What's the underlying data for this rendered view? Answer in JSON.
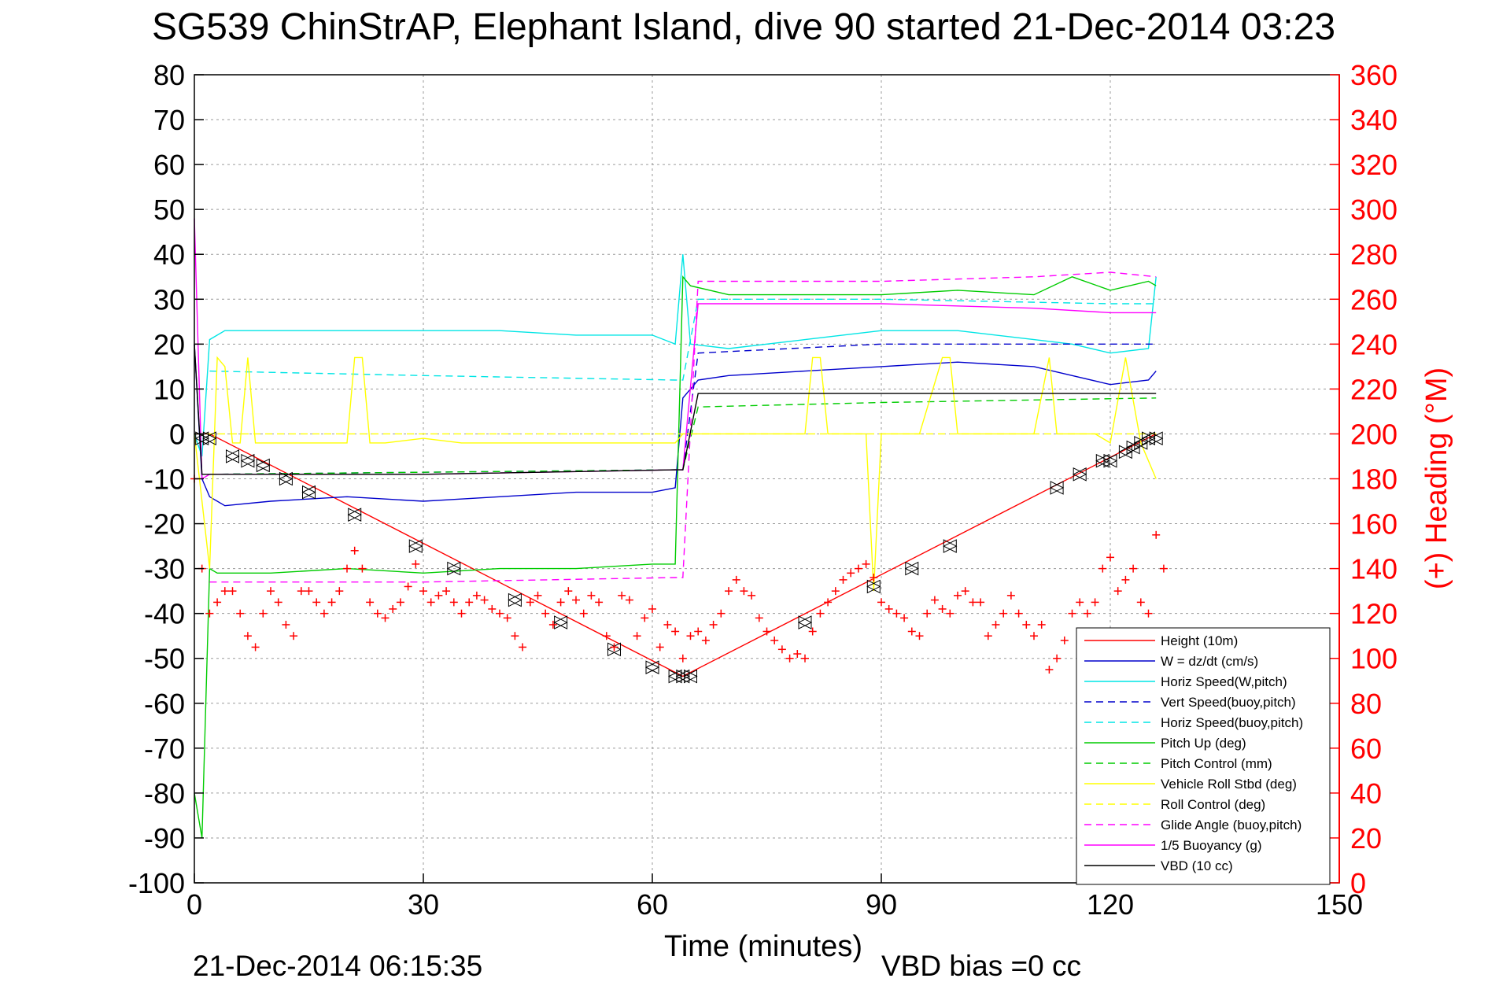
{
  "chart_data": {
    "type": "line",
    "title": "SG539 ChinStrAP, Elephant Island, dive 90 started 21-Dec-2014 03:23",
    "xlabel": "Time (minutes)",
    "ylabel": "",
    "y2label": "(+) Heading (°M)",
    "xlim": [
      0,
      150
    ],
    "ylim": [
      -100,
      80
    ],
    "y2lim": [
      0,
      360
    ],
    "xticks": [
      0,
      30,
      60,
      90,
      120,
      150
    ],
    "yticks": [
      80,
      70,
      60,
      50,
      40,
      30,
      20,
      10,
      0,
      -10,
      -20,
      -30,
      -40,
      -50,
      -60,
      -70,
      -80,
      -90,
      -100
    ],
    "y2ticks": [
      360,
      340,
      320,
      300,
      280,
      260,
      240,
      220,
      200,
      180,
      160,
      140,
      120,
      100,
      80,
      60,
      40,
      20,
      0
    ],
    "grid": true,
    "legend_position": "lower-right",
    "footer_left": "21-Dec-2014 06:15:35",
    "footer_right": "VBD bias =0 cc",
    "colors": {
      "axis_right": "#ff0000",
      "frame": "#000000",
      "grid": "#9a9a9a"
    },
    "series": [
      {
        "name": "Height (10m)",
        "color": "#ff0000",
        "style": "solid",
        "x": [
          0,
          2,
          64,
          126
        ],
        "y": [
          0,
          0,
          -54,
          0
        ]
      },
      {
        "name": "W = dz/dt (cm/s)",
        "color": "#0000cc",
        "style": "solid",
        "x": [
          0,
          1,
          2,
          4,
          10,
          20,
          30,
          40,
          50,
          60,
          63,
          64,
          66,
          70,
          80,
          90,
          100,
          110,
          115,
          120,
          125,
          126
        ],
        "y": [
          20,
          -10,
          -14,
          -16,
          -15,
          -14,
          -15,
          -14,
          -13,
          -13,
          -12,
          8,
          12,
          13,
          14,
          15,
          16,
          15,
          13,
          11,
          12,
          14
        ]
      },
      {
        "name": "Horiz Speed(W,pitch)",
        "color": "#00e5e5",
        "style": "solid",
        "x": [
          0,
          1,
          2,
          4,
          10,
          20,
          30,
          40,
          50,
          60,
          63,
          64,
          65,
          70,
          80,
          90,
          100,
          110,
          115,
          120,
          125,
          126
        ],
        "y": [
          0,
          -5,
          21,
          23,
          23,
          23,
          23,
          23,
          22,
          22,
          20,
          40,
          20,
          19,
          21,
          23,
          23,
          21,
          20,
          18,
          19,
          35
        ]
      },
      {
        "name": "Vert Speed(buoy,pitch)",
        "color": "#0000cc",
        "style": "dashed",
        "x": [
          2,
          63,
          64,
          66,
          90,
          120,
          126
        ],
        "y": [
          -9,
          -8,
          -8,
          18,
          20,
          20,
          20
        ]
      },
      {
        "name": "Horiz Speed(buoy,pitch)",
        "color": "#00e5e5",
        "style": "dashed",
        "x": [
          2,
          30,
          63,
          64,
          66,
          90,
          120,
          126
        ],
        "y": [
          14,
          13,
          12,
          12,
          30,
          30,
          29,
          29
        ]
      },
      {
        "name": "Pitch Up (deg)",
        "color": "#00cc00",
        "style": "solid",
        "x": [
          0,
          1,
          2,
          3,
          10,
          20,
          30,
          40,
          50,
          60,
          63,
          64,
          65,
          70,
          80,
          90,
          100,
          110,
          115,
          120,
          125,
          126
        ],
        "y": [
          -80,
          -90,
          -30,
          -31,
          -31,
          -30,
          -31,
          -30,
          -30,
          -29,
          -29,
          35,
          33,
          31,
          31,
          31,
          32,
          31,
          35,
          32,
          34,
          33
        ]
      },
      {
        "name": "Pitch Control (mm)",
        "color": "#00cc00",
        "style": "dashed",
        "x": [
          2,
          63,
          64,
          66,
          90,
          126
        ],
        "y": [
          -9,
          -8,
          -8,
          6,
          7,
          8
        ]
      },
      {
        "name": "Vehicle Roll Stbd (deg)",
        "color": "#ffff00",
        "style": "solid",
        "x": [
          0,
          2,
          3,
          4,
          5,
          6,
          7,
          8,
          10,
          15,
          20,
          21,
          22,
          23,
          25,
          30,
          35,
          40,
          45,
          50,
          55,
          60,
          63,
          64,
          70,
          80,
          81,
          82,
          83,
          85,
          88,
          89,
          90,
          95,
          98,
          99,
          100,
          105,
          110,
          112,
          113,
          115,
          118,
          120,
          122,
          124,
          126
        ],
        "y": [
          0,
          -30,
          17,
          15,
          -2,
          -2,
          17,
          -2,
          -2,
          -2,
          -2,
          17,
          17,
          -2,
          -2,
          -1,
          -2,
          -2,
          -2,
          -2,
          -2,
          -2,
          -2,
          0,
          0,
          0,
          17,
          17,
          0,
          0,
          0,
          -35,
          0,
          0,
          17,
          17,
          0,
          0,
          0,
          17,
          0,
          0,
          0,
          -2,
          17,
          -2,
          -10
        ]
      },
      {
        "name": "Roll Control (deg)",
        "color": "#ffff00",
        "style": "dashed",
        "x": [
          0,
          126
        ],
        "y": [
          0,
          0
        ]
      },
      {
        "name": "Glide Angle (buoy,pitch)",
        "color": "#ff00ff",
        "style": "dashed",
        "x": [
          2,
          30,
          63,
          64,
          66,
          90,
          110,
          120,
          126
        ],
        "y": [
          -33,
          -33,
          -32,
          -32,
          34,
          34,
          35,
          36,
          35
        ]
      },
      {
        "name": "1/5 Buoyancy (g)",
        "color": "#ff00ff",
        "style": "solid",
        "x": [
          0,
          1,
          2,
          30,
          63,
          64,
          66,
          90,
          110,
          120,
          126
        ],
        "y": [
          48,
          -10,
          -9,
          -9,
          -8,
          -8,
          29,
          29,
          28,
          27,
          27
        ]
      },
      {
        "name": "VBD (10 cc)",
        "color": "#000000",
        "style": "solid",
        "x": [
          0,
          1,
          2,
          30,
          63,
          64,
          66,
          90,
          126
        ],
        "y": [
          20,
          -9,
          -9,
          -9,
          -8,
          -8,
          9,
          9,
          9
        ]
      }
    ],
    "heading": {
      "name": "Heading",
      "color": "#ff0000",
      "marker": "+",
      "axis": "right",
      "x": [
        0,
        1,
        2,
        3,
        4,
        5,
        6,
        7,
        8,
        9,
        10,
        11,
        12,
        13,
        14,
        15,
        16,
        17,
        18,
        19,
        20,
        21,
        22,
        23,
        24,
        25,
        26,
        27,
        28,
        29,
        30,
        31,
        32,
        33,
        34,
        35,
        36,
        37,
        38,
        39,
        40,
        41,
        42,
        43,
        44,
        45,
        46,
        47,
        48,
        49,
        50,
        51,
        52,
        53,
        54,
        55,
        56,
        57,
        58,
        59,
        60,
        61,
        62,
        63,
        64,
        65,
        66,
        67,
        68,
        69,
        70,
        71,
        72,
        73,
        74,
        75,
        76,
        77,
        78,
        79,
        80,
        81,
        82,
        83,
        84,
        85,
        86,
        87,
        88,
        89,
        90,
        91,
        92,
        93,
        94,
        95,
        96,
        97,
        98,
        99,
        100,
        101,
        102,
        103,
        104,
        105,
        106,
        107,
        108,
        109,
        110,
        111,
        112,
        113,
        114,
        115,
        116,
        117,
        118,
        119,
        120,
        121,
        122,
        123,
        124,
        125,
        126,
        127
      ],
      "y": [
        180,
        140,
        120,
        125,
        130,
        130,
        120,
        110,
        105,
        120,
        130,
        125,
        115,
        110,
        130,
        130,
        125,
        120,
        125,
        130,
        140,
        148,
        140,
        125,
        120,
        118,
        122,
        125,
        132,
        142,
        130,
        125,
        128,
        130,
        125,
        120,
        125,
        128,
        126,
        122,
        120,
        118,
        110,
        105,
        125,
        128,
        120,
        115,
        125,
        130,
        126,
        120,
        128,
        125,
        110,
        105,
        128,
        126,
        110,
        118,
        122,
        105,
        115,
        112,
        100,
        110,
        112,
        108,
        115,
        120,
        130,
        135,
        130,
        128,
        118,
        112,
        108,
        104,
        100,
        102,
        100,
        112,
        120,
        125,
        130,
        135,
        138,
        140,
        142,
        136,
        125,
        122,
        120,
        118,
        112,
        110,
        120,
        126,
        122,
        120,
        128,
        130,
        125,
        125,
        110,
        115,
        120,
        128,
        120,
        115,
        110,
        115,
        95,
        100,
        108,
        120,
        125,
        120,
        125,
        140,
        145,
        130,
        135,
        140,
        125,
        120,
        155,
        140
      ]
    },
    "height_markers": {
      "marker": "triangle",
      "x": [
        1,
        2,
        5,
        7,
        9,
        12,
        15,
        21,
        29,
        34,
        42,
        48,
        55,
        60,
        63,
        64,
        65,
        80,
        89,
        94,
        99,
        113,
        116,
        119,
        120,
        122,
        123,
        124,
        125,
        126
      ],
      "y": [
        -1,
        -1,
        -5,
        -6,
        -7,
        -10,
        -13,
        -18,
        -25,
        -30,
        -37,
        -42,
        -48,
        -52,
        -54,
        -54,
        -54,
        -42,
        -34,
        -30,
        -25,
        -12,
        -9,
        -6,
        -6,
        -4,
        -3,
        -2,
        -1,
        -1
      ]
    }
  }
}
